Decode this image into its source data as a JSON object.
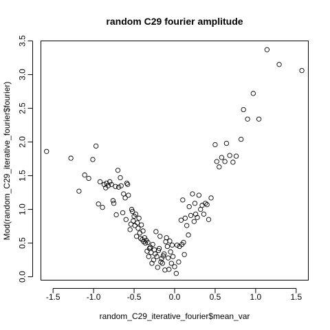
{
  "chart_data": {
    "type": "scatter",
    "title": "random C29 fourier amplitude",
    "xlabel": "random_C29_iterative_fourier$mean_var",
    "ylabel": "Mod(random_C29_iterative_fourier$fourier)",
    "xlim": [
      -1.65,
      1.65
    ],
    "ylim": [
      -0.05,
      3.5
    ],
    "xticks": [
      -1.5,
      -1.0,
      -0.5,
      0.0,
      0.5,
      1.0,
      1.5
    ],
    "xtick_labels": [
      "-1.5",
      "-1.0",
      "-0.5",
      "0.0",
      "0.5",
      "1.0",
      "1.5"
    ],
    "yticks": [
      0.0,
      0.5,
      1.0,
      1.5,
      2.0,
      2.5,
      3.0,
      3.5
    ],
    "ytick_labels": [
      "0.0",
      "0.5",
      "1.0",
      "1.5",
      "2.0",
      "2.5",
      "3.0",
      "3.5"
    ],
    "grid": false,
    "points": [
      [
        -1.58,
        1.86
      ],
      [
        -1.28,
        1.76
      ],
      [
        -1.18,
        1.27
      ],
      [
        -1.11,
        1.51
      ],
      [
        -1.06,
        1.46
      ],
      [
        -1.01,
        1.74
      ],
      [
        -0.97,
        1.94
      ],
      [
        -0.94,
        1.08
      ],
      [
        -0.92,
        1.41
      ],
      [
        -0.89,
        1.03
      ],
      [
        -0.87,
        1.37
      ],
      [
        -0.85,
        1.32
      ],
      [
        -0.84,
        1.39
      ],
      [
        -0.82,
        1.35
      ],
      [
        -0.8,
        1.41
      ],
      [
        -0.78,
        1.37
      ],
      [
        -0.76,
        1.13
      ],
      [
        -0.75,
        1.09
      ],
      [
        -0.73,
        1.34
      ],
      [
        -0.72,
        0.92
      ],
      [
        -0.7,
        1.58
      ],
      [
        -0.69,
        1.33
      ],
      [
        -0.67,
        1.47
      ],
      [
        -0.66,
        1.35
      ],
      [
        -0.64,
        0.95
      ],
      [
        -0.63,
        1.23
      ],
      [
        -0.61,
        1.17
      ],
      [
        -0.6,
        0.85
      ],
      [
        -0.59,
        1.39
      ],
      [
        -0.58,
        1.37
      ],
      [
        -0.57,
        1.21
      ],
      [
        -0.55,
        0.7
      ],
      [
        -0.54,
        0.78
      ],
      [
        -0.53,
        1.0
      ],
      [
        -0.52,
        0.97
      ],
      [
        -0.51,
        0.83
      ],
      [
        -0.5,
        0.9
      ],
      [
        -0.49,
        0.76
      ],
      [
        -0.48,
        0.93
      ],
      [
        -0.47,
        0.6
      ],
      [
        -0.46,
        0.8
      ],
      [
        -0.45,
        0.72
      ],
      [
        -0.44,
        0.87
      ],
      [
        -0.43,
        0.65
      ],
      [
        -0.42,
        0.57
      ],
      [
        -0.41,
        0.77
      ],
      [
        -0.4,
        0.55
      ],
      [
        -0.39,
        0.68
      ],
      [
        -0.38,
        0.52
      ],
      [
        -0.37,
        0.58
      ],
      [
        -0.36,
        0.5
      ],
      [
        -0.35,
        0.54
      ],
      [
        -0.34,
        0.38
      ],
      [
        -0.33,
        0.51
      ],
      [
        -0.32,
        0.3
      ],
      [
        -0.31,
        0.42
      ],
      [
        -0.3,
        0.44
      ],
      [
        -0.29,
        0.36
      ],
      [
        -0.28,
        0.2
      ],
      [
        -0.27,
        0.48
      ],
      [
        -0.26,
        0.25
      ],
      [
        -0.25,
        0.4
      ],
      [
        -0.24,
        0.34
      ],
      [
        -0.23,
        0.67
      ],
      [
        -0.22,
        0.3
      ],
      [
        -0.21,
        0.14
      ],
      [
        -0.2,
        0.39
      ],
      [
        -0.19,
        0.42
      ],
      [
        -0.18,
        0.6
      ],
      [
        -0.17,
        0.22
      ],
      [
        -0.16,
        0.27
      ],
      [
        -0.15,
        0.2
      ],
      [
        -0.14,
        0.31
      ],
      [
        -0.13,
        0.34
      ],
      [
        -0.12,
        0.1
      ],
      [
        -0.11,
        0.52
      ],
      [
        -0.1,
        0.58
      ],
      [
        -0.09,
        0.45
      ],
      [
        -0.08,
        0.28
      ],
      [
        -0.07,
        0.11
      ],
      [
        -0.06,
        0.53
      ],
      [
        -0.05,
        0.37
      ],
      [
        -0.04,
        0.2
      ],
      [
        -0.03,
        0.47
      ],
      [
        -0.02,
        0.3
      ],
      [
        0.0,
        0.15
      ],
      [
        0.02,
        0.05
      ],
      [
        0.03,
        0.47
      ],
      [
        0.05,
        0.22
      ],
      [
        0.06,
        0.45
      ],
      [
        0.08,
        0.84
      ],
      [
        0.09,
        0.48
      ],
      [
        0.1,
        1.14
      ],
      [
        0.11,
        0.51
      ],
      [
        0.12,
        0.33
      ],
      [
        0.13,
        0.87
      ],
      [
        0.15,
        0.76
      ],
      [
        0.17,
        0.62
      ],
      [
        0.18,
        1.04
      ],
      [
        0.2,
        0.91
      ],
      [
        0.22,
        1.23
      ],
      [
        0.24,
        0.82
      ],
      [
        0.25,
        1.09
      ],
      [
        0.26,
        0.93
      ],
      [
        0.28,
        0.88
      ],
      [
        0.3,
        1.21
      ],
      [
        0.32,
        1.0
      ],
      [
        0.34,
        1.06
      ],
      [
        0.36,
        0.93
      ],
      [
        0.38,
        1.09
      ],
      [
        0.4,
        1.07
      ],
      [
        0.42,
        0.85
      ],
      [
        0.45,
        1.17
      ],
      [
        0.5,
        1.96
      ],
      [
        0.52,
        1.71
      ],
      [
        0.55,
        1.63
      ],
      [
        0.58,
        1.77
      ],
      [
        0.62,
        1.71
      ],
      [
        0.64,
        1.98
      ],
      [
        0.68,
        1.8
      ],
      [
        0.72,
        1.7
      ],
      [
        0.76,
        1.79
      ],
      [
        0.82,
        2.04
      ],
      [
        0.85,
        2.48
      ],
      [
        0.9,
        2.34
      ],
      [
        0.97,
        2.72
      ],
      [
        1.04,
        2.34
      ],
      [
        1.14,
        3.37
      ],
      [
        1.29,
        3.15
      ],
      [
        1.57,
        3.06
      ]
    ]
  }
}
